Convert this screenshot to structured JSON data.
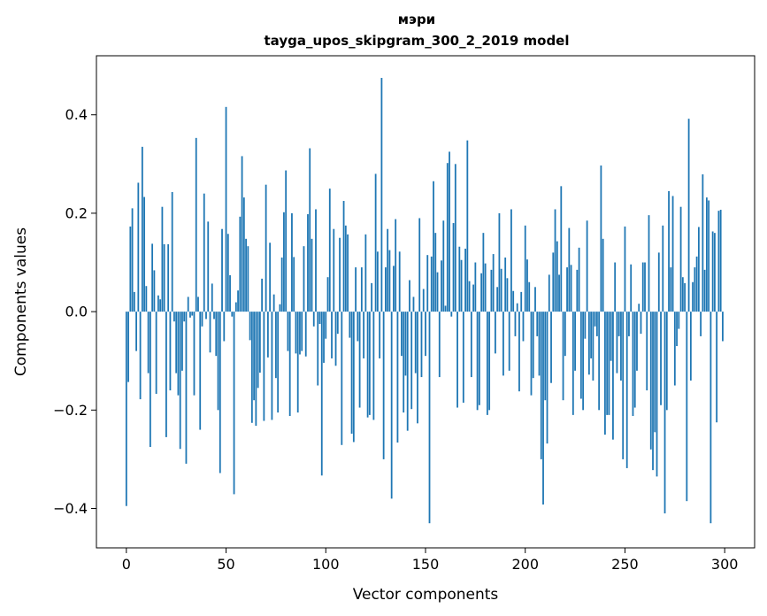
{
  "chart_data": {
    "type": "bar",
    "title": "мэри",
    "subtitle": "tayga_upos_skipgram_300_2_2019 model",
    "xlabel": "Vector components",
    "ylabel": "Components values",
    "xlim": [
      -15,
      315
    ],
    "ylim": [
      -0.48,
      0.52
    ],
    "xticks": [
      0,
      50,
      100,
      150,
      200,
      250,
      300
    ],
    "yticks": [
      -0.4,
      -0.2,
      0.0,
      0.2,
      0.4
    ],
    "ytick_labels": [
      "−0.4",
      "−0.2",
      "0.0",
      "0.2",
      "0.4"
    ],
    "xtick_labels": [
      "0",
      "50",
      "100",
      "150",
      "200",
      "250",
      "300"
    ],
    "grid": false,
    "bar_color": "#1f77b4",
    "values": [
      -0.395,
      -0.143,
      0.173,
      0.21,
      0.04,
      -0.08,
      0.262,
      -0.178,
      0.335,
      0.233,
      0.052,
      -0.125,
      -0.275,
      0.138,
      0.084,
      -0.167,
      0.033,
      0.025,
      0.213,
      0.137,
      -0.255,
      0.137,
      -0.16,
      0.243,
      -0.02,
      -0.125,
      -0.17,
      -0.279,
      -0.12,
      -0.02,
      -0.309,
      0.03,
      -0.012,
      -0.008,
      -0.17,
      0.353,
      0.03,
      -0.24,
      -0.03,
      0.24,
      -0.015,
      0.183,
      -0.083,
      0.057,
      -0.015,
      -0.09,
      -0.2,
      -0.328,
      0.168,
      -0.06,
      0.416,
      0.158,
      0.074,
      -0.01,
      -0.371,
      0.019,
      0.043,
      0.193,
      0.316,
      0.232,
      0.148,
      0.133,
      -0.058,
      -0.226,
      -0.18,
      -0.232,
      -0.155,
      -0.124,
      0.067,
      -0.222,
      0.258,
      -0.093,
      0.14,
      -0.22,
      0.035,
      -0.135,
      -0.205,
      0.015,
      0.11,
      0.202,
      0.287,
      -0.08,
      -0.212,
      0.2,
      0.111,
      -0.085,
      -0.205,
      -0.087,
      -0.08,
      0.133,
      -0.091,
      0.198,
      0.332,
      0.148,
      -0.03,
      0.208,
      -0.15,
      -0.025,
      -0.333,
      -0.104,
      -0.055,
      0.07,
      0.25,
      -0.095,
      0.168,
      -0.11,
      -0.045,
      0.15,
      -0.271,
      0.225,
      0.175,
      0.157,
      -0.053,
      -0.248,
      -0.265,
      0.09,
      -0.06,
      -0.195,
      0.09,
      -0.095,
      0.157,
      -0.215,
      -0.21,
      0.058,
      -0.22,
      0.28,
      0.122,
      -0.095,
      0.475,
      -0.3,
      0.09,
      0.168,
      0.125,
      -0.38,
      0.093,
      0.188,
      -0.266,
      0.122,
      -0.09,
      -0.205,
      -0.13,
      -0.242,
      0.064,
      -0.198,
      0.03,
      -0.125,
      -0.227,
      0.19,
      -0.133,
      0.046,
      -0.09,
      0.115,
      -0.43,
      0.112,
      0.265,
      0.16,
      0.08,
      -0.133,
      0.104,
      0.185,
      0.012,
      0.302,
      0.325,
      -0.01,
      0.18,
      0.3,
      -0.195,
      0.132,
      0.105,
      -0.185,
      0.128,
      0.348,
      0.062,
      -0.133,
      0.055,
      0.1,
      -0.2,
      -0.19,
      0.078,
      0.16,
      0.098,
      -0.21,
      -0.2,
      0.085,
      0.117,
      -0.085,
      0.05,
      0.2,
      0.087,
      -0.13,
      0.11,
      0.068,
      -0.12,
      0.208,
      0.042,
      -0.05,
      0.017,
      -0.162,
      0.04,
      -0.06,
      0.175,
      0.106,
      0.06,
      -0.17,
      -0.135,
      0.05,
      -0.05,
      -0.13,
      -0.3,
      -0.392,
      -0.18,
      -0.268,
      0.075,
      -0.145,
      0.12,
      0.208,
      0.143,
      0.075,
      0.255,
      -0.18,
      -0.09,
      0.09,
      0.17,
      0.095,
      -0.21,
      -0.12,
      0.085,
      0.13,
      -0.177,
      -0.2,
      -0.055,
      0.185,
      -0.128,
      -0.095,
      -0.14,
      -0.03,
      -0.05,
      -0.2,
      0.297,
      0.148,
      -0.25,
      -0.21,
      -0.21,
      -0.1,
      -0.26,
      0.1,
      -0.125,
      -0.05,
      -0.14,
      -0.3,
      0.173,
      -0.318,
      -0.05,
      0.096,
      -0.212,
      -0.195,
      -0.12,
      0.016,
      -0.045,
      0.1,
      0.1,
      -0.16,
      0.196,
      -0.28,
      -0.322,
      -0.245,
      -0.335,
      0.12,
      -0.19,
      0.175,
      -0.41,
      -0.2,
      0.245,
      0.09,
      0.235,
      -0.15,
      -0.07,
      -0.035,
      0.213,
      0.07,
      0.058,
      -0.385,
      0.392,
      -0.14,
      0.06,
      0.09,
      0.112,
      0.172,
      -0.05,
      0.279,
      0.085,
      0.232,
      0.226,
      -0.43,
      0.163,
      0.16,
      -0.225,
      0.205,
      0.207,
      -0.06
    ]
  }
}
